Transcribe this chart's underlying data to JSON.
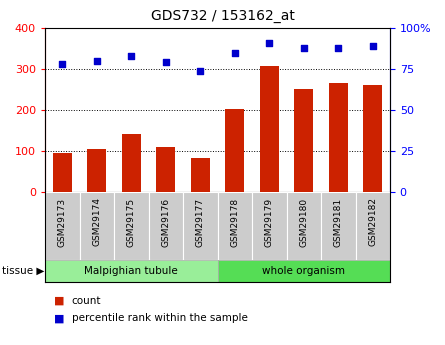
{
  "title": "GDS732 / 153162_at",
  "categories": [
    "GSM29173",
    "GSM29174",
    "GSM29175",
    "GSM29176",
    "GSM29177",
    "GSM29178",
    "GSM29179",
    "GSM29180",
    "GSM29181",
    "GSM29182"
  ],
  "count_values": [
    95,
    105,
    142,
    110,
    82,
    202,
    308,
    252,
    265,
    262
  ],
  "percentile_values": [
    78,
    80,
    83,
    79,
    74,
    85,
    91,
    88,
    88,
    89
  ],
  "ylim_left": [
    0,
    400
  ],
  "ylim_right": [
    0,
    100
  ],
  "yticks_left": [
    0,
    100,
    200,
    300,
    400
  ],
  "yticks_right": [
    0,
    25,
    50,
    75,
    100
  ],
  "ytick_labels_right": [
    "0",
    "25",
    "50",
    "75",
    "100%"
  ],
  "bar_color": "#cc2200",
  "scatter_color": "#0000cc",
  "tissue_group1_label": "Malpighian tubule",
  "tissue_group1_color": "#99ee99",
  "tissue_group2_label": "whole organism",
  "tissue_group2_color": "#55dd55",
  "tissue_label": "tissue",
  "legend_count_label": "count",
  "legend_percentile_label": "percentile rank within the sample",
  "bar_color_legend": "#cc2200",
  "scatter_color_legend": "#0000cc"
}
